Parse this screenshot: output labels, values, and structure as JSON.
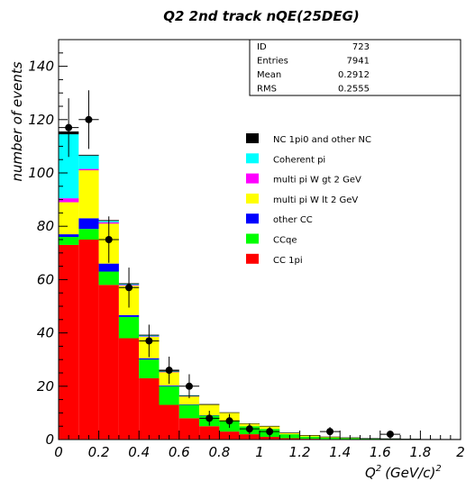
{
  "chart_data": {
    "type": "bar",
    "title": "Q2 2nd track nQE(25DEG)",
    "xlabel": "Q",
    "xlabel_sup1": "2",
    "xlabel_unit": "(GeV/c)",
    "xlabel_sup2": "2",
    "ylabel": "number of events",
    "xlim": [
      0,
      2
    ],
    "ylim": [
      0,
      150
    ],
    "x_ticks": [
      "0",
      "0.2",
      "0.4",
      "0.6",
      "0.8",
      "1",
      "1.2",
      "1.4",
      "1.6",
      "1.8",
      "2"
    ],
    "y_ticks": [
      "0",
      "20",
      "40",
      "60",
      "80",
      "100",
      "120",
      "140"
    ],
    "bin_edges": [
      0,
      0.1,
      0.2,
      0.3,
      0.4,
      0.5,
      0.6,
      0.7,
      0.8,
      0.9,
      1.0,
      1.1,
      1.2,
      1.3,
      1.4,
      1.5,
      1.6,
      1.7,
      1.8,
      1.9,
      2.0
    ],
    "stack_order_bottom_to_top": [
      "CC 1pi",
      "CCqe",
      "other CC",
      "multi pi W lt 2 GeV",
      "multi pi W gt 2 GeV",
      "Coherent pi",
      "NC 1pi0 and other NC"
    ],
    "series": [
      {
        "name": "CC 1pi",
        "color": "#ff0000",
        "values": [
          73,
          75,
          58,
          38,
          23,
          13,
          8,
          5,
          3,
          2,
          1,
          0.5,
          0.3,
          0.2,
          0.1,
          0.1,
          0,
          0,
          0,
          0
        ]
      },
      {
        "name": "CCqe",
        "color": "#00ff00",
        "values": [
          3,
          4,
          5,
          8,
          7,
          7,
          5,
          4,
          4,
          3,
          3,
          1.5,
          0.8,
          0.5,
          0.4,
          0.3,
          0.3,
          0.2,
          0.1,
          0.1
        ]
      },
      {
        "name": "other CC",
        "color": "#0000ff",
        "values": [
          1,
          4,
          3,
          0.7,
          0.5,
          0.3,
          0.2,
          0.1,
          0.1,
          0,
          0,
          0,
          0,
          0,
          0,
          0,
          0,
          0,
          0,
          0
        ]
      },
      {
        "name": "multi pi W lt 2 GeV",
        "color": "#ffff00",
        "values": [
          12,
          18,
          15,
          11,
          8,
          5,
          3,
          4,
          3,
          1,
          1,
          0.5,
          0.5,
          0.3,
          0.2,
          0,
          0,
          0,
          0,
          0
        ]
      },
      {
        "name": "multi pi W gt 2 GeV",
        "color": "#ff00ff",
        "values": [
          1.5,
          0.5,
          0.5,
          0.3,
          0.2,
          0.1,
          0.1,
          0,
          0,
          0,
          0,
          0,
          0,
          0,
          0,
          0,
          0,
          0,
          0,
          0
        ]
      },
      {
        "name": "Coherent pi",
        "color": "#00ffff",
        "values": [
          24,
          5,
          0.5,
          0.3,
          0.3,
          0.2,
          0.1,
          0,
          0,
          0,
          0,
          0,
          0,
          0,
          0,
          0,
          0,
          0,
          0,
          0
        ]
      },
      {
        "name": "NC 1pi0 and other NC",
        "color": "#000000",
        "values": [
          1,
          0.2,
          0.2,
          0.2,
          0.2,
          0.1,
          0.1,
          0.1,
          0,
          0,
          0,
          0,
          0,
          0,
          0,
          0,
          0,
          0,
          0,
          0
        ]
      }
    ],
    "data_points": [
      {
        "x": 0.05,
        "y": 117,
        "err": 11
      },
      {
        "x": 0.15,
        "y": 120,
        "err": 11
      },
      {
        "x": 0.25,
        "y": 75,
        "err": 8.7
      },
      {
        "x": 0.35,
        "y": 57,
        "err": 7.5
      },
      {
        "x": 0.45,
        "y": 37,
        "err": 6.1
      },
      {
        "x": 0.55,
        "y": 26,
        "err": 5.1
      },
      {
        "x": 0.65,
        "y": 20,
        "err": 4.5
      },
      {
        "x": 0.75,
        "y": 8,
        "err": 2.8
      },
      {
        "x": 0.85,
        "y": 7,
        "err": 2.6
      },
      {
        "x": 0.95,
        "y": 4,
        "err": 2
      },
      {
        "x": 1.05,
        "y": 3,
        "err": 1.7
      },
      {
        "x": 1.35,
        "y": 3,
        "err": 1.7
      },
      {
        "x": 1.65,
        "y": 2,
        "err": 1.4
      }
    ],
    "legend_placement": "right-middle",
    "grid": false
  },
  "stats_box": {
    "rows": [
      {
        "label": "ID",
        "value": "723"
      },
      {
        "label": "Entries",
        "value": "7941"
      },
      {
        "label": "Mean",
        "value": "0.2912"
      },
      {
        "label": "RMS",
        "value": "0.2555"
      }
    ]
  },
  "legend_order_top_to_bottom": [
    "NC 1pi0 and other NC",
    "Coherent pi",
    "multi pi W gt 2 GeV",
    "multi pi W lt 2 GeV",
    "other CC",
    "CCqe",
    "CC 1pi"
  ]
}
